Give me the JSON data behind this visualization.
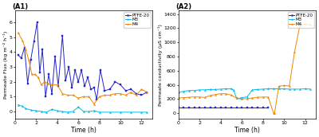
{
  "title_left": "(A1)",
  "title_right": "(A2)",
  "xlabel": "Time (h)",
  "ylabel_left": "Permeate Flux (kg m⁻² h⁻¹)",
  "ylabel_right": "Permeate conductivity (μS cm⁻¹)",
  "xlim": [
    0,
    13
  ],
  "ylim_left": [
    -0.5,
    6.8
  ],
  "ylim_right": [
    -80,
    1450
  ],
  "xticks": [
    0,
    2,
    4,
    6,
    8,
    10,
    12
  ],
  "yticks_left": [
    0,
    1,
    2,
    3,
    4,
    5,
    6
  ],
  "yticks_right": [
    0,
    200,
    400,
    600,
    800,
    1000,
    1200,
    1400
  ],
  "colors": {
    "PTFE20": "#2222cc",
    "M3": "#00bbee",
    "M4": "#ee8800"
  },
  "PTFE20_flux_x": [
    0.3,
    0.6,
    0.9,
    1.2,
    1.5,
    1.8,
    2.1,
    2.35,
    2.6,
    2.9,
    3.2,
    3.5,
    3.8,
    4.1,
    4.5,
    4.8,
    5.1,
    5.4,
    5.7,
    6.0,
    6.3,
    6.6,
    6.9,
    7.2,
    7.5,
    7.75,
    8.1,
    8.5,
    9.0,
    9.5,
    10.0,
    10.5,
    11.0,
    11.5,
    12.0,
    12.5
  ],
  "PTFE20_flux_y": [
    3.8,
    3.6,
    4.3,
    1.9,
    3.5,
    4.7,
    6.0,
    2.6,
    4.2,
    1.0,
    2.5,
    1.2,
    3.7,
    1.7,
    5.1,
    2.1,
    3.0,
    1.6,
    2.8,
    2.0,
    2.8,
    1.7,
    2.3,
    1.5,
    1.6,
    0.8,
    2.8,
    1.4,
    1.5,
    2.0,
    1.8,
    1.4,
    1.5,
    1.2,
    1.1,
    1.3
  ],
  "M3_flux_x": [
    0.3,
    0.7,
    1.0,
    1.5,
    2.0,
    2.5,
    3.0,
    3.5,
    4.0,
    4.5,
    5.0,
    5.5,
    6.0,
    6.5,
    7.0,
    7.5,
    8.0,
    9.0,
    10.0,
    11.0,
    12.0,
    12.5
  ],
  "M3_flux_y": [
    0.45,
    0.35,
    0.2,
    0.1,
    0.05,
    0.0,
    -0.05,
    0.15,
    0.05,
    0.0,
    -0.05,
    0.0,
    0.3,
    0.0,
    0.0,
    0.05,
    -0.05,
    -0.05,
    -0.05,
    -0.05,
    -0.05,
    -0.05
  ],
  "M4_flux_x": [
    0.3,
    0.7,
    1.0,
    1.3,
    1.6,
    1.9,
    2.2,
    2.5,
    2.8,
    3.1,
    3.5,
    4.0,
    4.5,
    5.0,
    5.5,
    6.0,
    6.5,
    7.0,
    7.5,
    8.0,
    8.5,
    9.0,
    9.5,
    10.0,
    10.5,
    11.0,
    11.5,
    12.0,
    12.5
  ],
  "M4_flux_y": [
    5.3,
    4.8,
    4.2,
    3.5,
    2.5,
    2.5,
    2.3,
    1.8,
    2.0,
    1.9,
    1.8,
    1.8,
    1.2,
    1.1,
    1.1,
    0.9,
    1.0,
    1.0,
    0.5,
    1.0,
    1.1,
    1.1,
    1.2,
    1.2,
    1.1,
    1.3,
    1.1,
    1.5,
    1.3
  ],
  "PTFE20_cond_x": [
    0.0,
    0.5,
    1.0,
    1.5,
    2.0,
    2.5,
    3.0,
    3.5,
    4.0,
    4.5,
    5.0,
    5.5,
    6.0,
    6.5,
    7.0,
    7.5,
    8.0,
    8.5
  ],
  "PTFE20_cond_y": [
    75,
    75,
    75,
    75,
    75,
    75,
    75,
    75,
    75,
    75,
    75,
    75,
    75,
    75,
    75,
    75,
    75,
    75
  ],
  "M3_cond_x": [
    0.0,
    0.5,
    1.0,
    1.5,
    2.0,
    2.5,
    3.0,
    3.5,
    4.0,
    4.5,
    5.0,
    5.2,
    5.5,
    5.8,
    6.0,
    6.5,
    7.0,
    7.5,
    8.0,
    8.5,
    9.0,
    9.5,
    10.0,
    10.5,
    11.0,
    11.5,
    12.0,
    12.5
  ],
  "M3_cond_y": [
    295,
    310,
    320,
    320,
    330,
    330,
    335,
    335,
    340,
    345,
    345,
    330,
    215,
    210,
    220,
    230,
    330,
    335,
    340,
    345,
    345,
    345,
    345,
    340,
    340,
    340,
    345,
    340
  ],
  "M4_cond_x": [
    0.0,
    0.5,
    1.0,
    1.5,
    2.0,
    2.5,
    3.0,
    3.5,
    4.0,
    4.5,
    5.0,
    5.5,
    6.0,
    6.5,
    7.0,
    7.5,
    8.0,
    8.5,
    9.0,
    9.1,
    9.5,
    10.0,
    10.5,
    11.0,
    11.5,
    12.0,
    12.5
  ],
  "M4_cond_y": [
    215,
    220,
    225,
    230,
    228,
    225,
    250,
    265,
    275,
    275,
    255,
    215,
    205,
    205,
    215,
    225,
    228,
    228,
    5,
    0,
    380,
    390,
    385,
    870,
    1240,
    1260,
    1250
  ]
}
